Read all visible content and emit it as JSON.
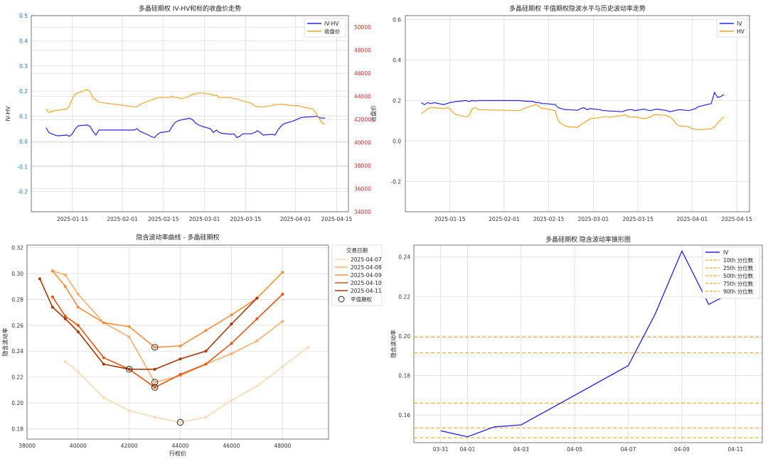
{
  "chart_data": [
    {
      "id": "chart1",
      "type": "line",
      "title": "多晶硅期权 IV-HV和标的收盘价走势",
      "ylabel": "IV-HV",
      "ylabel_right": "收盘价",
      "x_ticks": [
        "2025-01-15",
        "2025-02-01",
        "2025-02-15",
        "2025-03-01",
        "2025-03-15",
        "2025-04-01",
        "2025-04-15"
      ],
      "x_range": [
        "2025-01-01",
        "2025-04-19"
      ],
      "ylim": [
        -0.28,
        0.5
      ],
      "y_ticks": [
        -0.2,
        -0.1,
        0.0,
        0.1,
        0.2,
        0.3,
        0.4,
        0.5
      ],
      "ylim_right": [
        34000,
        51000
      ],
      "y_ticks_right": [
        34000,
        36000,
        38000,
        40000,
        42000,
        44000,
        46000,
        48000,
        50000
      ],
      "legend": "top-right",
      "grid": true,
      "series": [
        {
          "name": "IV-HV",
          "axis": "left",
          "color": "#2222ee",
          "x": [
            "2025-01-06",
            "2025-01-07",
            "2025-01-08",
            "2025-01-09",
            "2025-01-10",
            "2025-01-13",
            "2025-01-14",
            "2025-01-15",
            "2025-01-16",
            "2025-01-17",
            "2025-01-20",
            "2025-01-21",
            "2025-01-22",
            "2025-01-23",
            "2025-01-24",
            "2025-02-05",
            "2025-02-06",
            "2025-02-07",
            "2025-02-10",
            "2025-02-11",
            "2025-02-12",
            "2025-02-13",
            "2025-02-14",
            "2025-02-17",
            "2025-02-18",
            "2025-02-19",
            "2025-02-20",
            "2025-02-21",
            "2025-02-24",
            "2025-02-25",
            "2025-02-26",
            "2025-02-27",
            "2025-02-28",
            "2025-03-03",
            "2025-03-04",
            "2025-03-05",
            "2025-03-06",
            "2025-03-07",
            "2025-03-10",
            "2025-03-11",
            "2025-03-12",
            "2025-03-13",
            "2025-03-14",
            "2025-03-17",
            "2025-03-18",
            "2025-03-19",
            "2025-03-20",
            "2025-03-21",
            "2025-03-24",
            "2025-03-25",
            "2025-03-26",
            "2025-03-27",
            "2025-03-28",
            "2025-03-31",
            "2025-04-01",
            "2025-04-02",
            "2025-04-03",
            "2025-04-07",
            "2025-04-08",
            "2025-04-09",
            "2025-04-10",
            "2025-04-11"
          ],
          "values": [
            0.055,
            0.035,
            0.03,
            0.025,
            0.022,
            0.025,
            0.02,
            0.03,
            0.05,
            0.062,
            0.065,
            0.06,
            0.04,
            0.025,
            0.045,
            0.045,
            0.05,
            0.04,
            0.025,
            0.018,
            0.015,
            0.028,
            0.035,
            0.04,
            0.06,
            0.075,
            0.082,
            0.085,
            0.092,
            0.085,
            0.072,
            0.065,
            0.06,
            0.05,
            0.035,
            0.045,
            0.035,
            0.032,
            0.028,
            0.03,
            0.015,
            0.02,
            0.03,
            0.03,
            0.035,
            0.042,
            0.035,
            0.025,
            0.028,
            0.025,
            0.045,
            0.06,
            0.07,
            0.08,
            0.085,
            0.09,
            0.095,
            0.098,
            0.1,
            0.095,
            0.092,
            0.093
          ]
        },
        {
          "name": "收盘价",
          "axis": "right",
          "color": "#f5a623",
          "x": [
            "2025-01-06",
            "2025-01-07",
            "2025-01-08",
            "2025-01-09",
            "2025-01-10",
            "2025-01-13",
            "2025-01-14",
            "2025-01-15",
            "2025-01-16",
            "2025-01-17",
            "2025-01-20",
            "2025-01-21",
            "2025-01-22",
            "2025-01-23",
            "2025-01-24",
            "2025-02-05",
            "2025-02-06",
            "2025-02-07",
            "2025-02-10",
            "2025-02-11",
            "2025-02-12",
            "2025-02-13",
            "2025-02-14",
            "2025-02-17",
            "2025-02-18",
            "2025-02-19",
            "2025-02-20",
            "2025-02-21",
            "2025-02-24",
            "2025-02-25",
            "2025-02-26",
            "2025-02-27",
            "2025-02-28",
            "2025-03-03",
            "2025-03-04",
            "2025-03-05",
            "2025-03-06",
            "2025-03-07",
            "2025-03-10",
            "2025-03-11",
            "2025-03-12",
            "2025-03-13",
            "2025-03-14",
            "2025-03-17",
            "2025-03-18",
            "2025-03-19",
            "2025-03-20",
            "2025-03-21",
            "2025-03-24",
            "2025-03-25",
            "2025-03-26",
            "2025-03-27",
            "2025-03-28",
            "2025-03-31",
            "2025-04-01",
            "2025-04-02",
            "2025-04-03",
            "2025-04-07",
            "2025-04-08",
            "2025-04-09",
            "2025-04-10",
            "2025-04-11"
          ],
          "values": [
            42900,
            42600,
            42700,
            42750,
            42800,
            42900,
            43200,
            43800,
            44200,
            44300,
            44600,
            44400,
            43900,
            43700,
            43500,
            43100,
            43100,
            43300,
            43600,
            43700,
            43800,
            43900,
            43900,
            43900,
            44000,
            43900,
            43900,
            43800,
            44000,
            44200,
            44200,
            44300,
            44300,
            44200,
            44100,
            44100,
            43900,
            43900,
            43900,
            43800,
            43800,
            43700,
            43600,
            43400,
            43200,
            43100,
            43100,
            43100,
            43200,
            43300,
            43300,
            43300,
            43300,
            43200,
            43200,
            43200,
            43100,
            42900,
            42500,
            42100,
            41700,
            41600
          ]
        }
      ]
    },
    {
      "id": "chart2",
      "type": "line",
      "title": "多晶硅期权 平值期权隐波水平与历史波动率走势",
      "x_ticks": [
        "2025-01-15",
        "2025-02-01",
        "2025-02-15",
        "2025-03-01",
        "2025-03-15",
        "2025-04-01",
        "2025-04-15"
      ],
      "x_range": [
        "2025-01-01",
        "2025-04-19"
      ],
      "ylim": [
        -0.35,
        0.62
      ],
      "y_ticks": [
        -0.2,
        0.0,
        0.2,
        0.4,
        0.6
      ],
      "legend": "top-right",
      "grid": true,
      "series": [
        {
          "name": "IV",
          "color": "#2222ee",
          "x": [
            "2025-01-06",
            "2025-01-07",
            "2025-01-08",
            "2025-01-09",
            "2025-01-10",
            "2025-01-13",
            "2025-01-14",
            "2025-01-15",
            "2025-01-16",
            "2025-01-17",
            "2025-01-20",
            "2025-01-21",
            "2025-01-22",
            "2025-01-23",
            "2025-01-24",
            "2025-02-05",
            "2025-02-06",
            "2025-02-07",
            "2025-02-10",
            "2025-02-11",
            "2025-02-12",
            "2025-02-13",
            "2025-02-14",
            "2025-02-17",
            "2025-02-18",
            "2025-02-19",
            "2025-02-20",
            "2025-02-21",
            "2025-02-24",
            "2025-02-25",
            "2025-02-26",
            "2025-02-27",
            "2025-02-28",
            "2025-03-03",
            "2025-03-04",
            "2025-03-05",
            "2025-03-06",
            "2025-03-07",
            "2025-03-10",
            "2025-03-11",
            "2025-03-12",
            "2025-03-13",
            "2025-03-14",
            "2025-03-17",
            "2025-03-18",
            "2025-03-19",
            "2025-03-20",
            "2025-03-21",
            "2025-03-24",
            "2025-03-25",
            "2025-03-26",
            "2025-03-27",
            "2025-03-28",
            "2025-03-31",
            "2025-04-01",
            "2025-04-02",
            "2025-04-03",
            "2025-04-07",
            "2025-04-08",
            "2025-04-09",
            "2025-04-10",
            "2025-04-11"
          ],
          "values": [
            0.19,
            0.18,
            0.19,
            0.185,
            0.19,
            0.18,
            0.185,
            0.19,
            0.192,
            0.195,
            0.2,
            0.195,
            0.2,
            0.198,
            0.2,
            0.2,
            0.2,
            0.198,
            0.195,
            0.19,
            0.19,
            0.185,
            0.185,
            0.18,
            0.165,
            0.16,
            0.155,
            0.155,
            0.152,
            0.16,
            0.165,
            0.155,
            0.16,
            0.155,
            0.15,
            0.15,
            0.148,
            0.148,
            0.145,
            0.15,
            0.155,
            0.155,
            0.15,
            0.158,
            0.152,
            0.15,
            0.155,
            0.158,
            0.15,
            0.145,
            0.148,
            0.152,
            0.155,
            0.15,
            0.155,
            0.16,
            0.17,
            0.185,
            0.24,
            0.215,
            0.22,
            0.23
          ]
        },
        {
          "name": "HV",
          "color": "#f5a623",
          "x": [
            "2025-01-06",
            "2025-01-07",
            "2025-01-08",
            "2025-01-09",
            "2025-01-10",
            "2025-01-13",
            "2025-01-14",
            "2025-01-15",
            "2025-01-16",
            "2025-01-17",
            "2025-01-20",
            "2025-01-21",
            "2025-01-22",
            "2025-01-23",
            "2025-01-24",
            "2025-02-05",
            "2025-02-06",
            "2025-02-07",
            "2025-02-10",
            "2025-02-11",
            "2025-02-12",
            "2025-02-13",
            "2025-02-14",
            "2025-02-17",
            "2025-02-18",
            "2025-02-19",
            "2025-02-20",
            "2025-02-21",
            "2025-02-24",
            "2025-02-25",
            "2025-02-26",
            "2025-02-27",
            "2025-02-28",
            "2025-03-03",
            "2025-03-04",
            "2025-03-05",
            "2025-03-06",
            "2025-03-07",
            "2025-03-10",
            "2025-03-11",
            "2025-03-12",
            "2025-03-13",
            "2025-03-14",
            "2025-03-17",
            "2025-03-18",
            "2025-03-19",
            "2025-03-20",
            "2025-03-21",
            "2025-03-24",
            "2025-03-25",
            "2025-03-26",
            "2025-03-27",
            "2025-03-28",
            "2025-03-31",
            "2025-04-01",
            "2025-04-02",
            "2025-04-03",
            "2025-04-07",
            "2025-04-08",
            "2025-04-09",
            "2025-04-10",
            "2025-04-11"
          ],
          "values": [
            0.135,
            0.145,
            0.16,
            0.165,
            0.165,
            0.16,
            0.165,
            0.16,
            0.14,
            0.13,
            0.12,
            0.125,
            0.16,
            0.165,
            0.155,
            0.15,
            0.15,
            0.16,
            0.175,
            0.18,
            0.17,
            0.16,
            0.16,
            0.15,
            0.1,
            0.085,
            0.075,
            0.07,
            0.068,
            0.08,
            0.09,
            0.1,
            0.11,
            0.115,
            0.12,
            0.12,
            0.118,
            0.12,
            0.125,
            0.13,
            0.12,
            0.118,
            0.12,
            0.11,
            0.115,
            0.12,
            0.13,
            0.13,
            0.125,
            0.12,
            0.105,
            0.085,
            0.075,
            0.07,
            0.06,
            0.058,
            0.056,
            0.06,
            0.07,
            0.09,
            0.105,
            0.12
          ]
        }
      ]
    },
    {
      "id": "chart3",
      "type": "line",
      "title": "隐含波动率曲线 - 多晶硅期权",
      "xlabel": "行权价",
      "ylabel": "隐含波动率",
      "xlim": [
        38000,
        49800
      ],
      "x_ticks": [
        38000,
        40000,
        42000,
        44000,
        46000,
        48000
      ],
      "ylim": [
        0.172,
        0.322
      ],
      "y_ticks": [
        0.18,
        0.2,
        0.22,
        0.24,
        0.26,
        0.28,
        0.3,
        0.32
      ],
      "legend_title": "交易日期",
      "legend": "top-right outside",
      "atm_label": "平值期权",
      "grid": true,
      "series": [
        {
          "name": "2025-04-07",
          "color": "#fdd9b5",
          "x": [
            39500,
            40000,
            41000,
            42000,
            43000,
            44000,
            45000,
            46000,
            47000,
            48000,
            49000
          ],
          "values": [
            0.232,
            0.224,
            0.204,
            0.194,
            0.189,
            0.185,
            0.189,
            0.202,
            0.213,
            0.228,
            0.243
          ],
          "atm_x": 44000,
          "atm_value": 0.185
        },
        {
          "name": "2025-04-08",
          "color": "#fdae6b",
          "x": [
            39000,
            39500,
            40000,
            41000,
            42000,
            43000,
            44000,
            45000,
            46000,
            47000,
            48000
          ],
          "values": [
            0.302,
            0.299,
            0.284,
            0.262,
            0.251,
            0.216,
            0.221,
            0.23,
            0.238,
            0.248,
            0.263
          ],
          "atm_x": 43000,
          "atm_value": 0.216
        },
        {
          "name": "2025-04-09",
          "color": "#fd8d3c",
          "x": [
            39000,
            39500,
            40000,
            41000,
            42000,
            43000,
            44000,
            45000,
            46000,
            47000,
            48000
          ],
          "values": [
            0.302,
            0.29,
            0.274,
            0.262,
            0.259,
            0.243,
            0.244,
            0.256,
            0.268,
            0.281,
            0.301
          ],
          "atm_x": 43000,
          "atm_value": 0.243
        },
        {
          "name": "2025-04-10",
          "color": "#e6550d",
          "x": [
            39000,
            39500,
            40000,
            41000,
            42000,
            43000,
            44000,
            45000,
            46000,
            47000,
            48000
          ],
          "values": [
            0.282,
            0.267,
            0.26,
            0.235,
            0.226,
            0.212,
            0.222,
            0.23,
            0.246,
            0.265,
            0.284
          ],
          "atm_x": 43000,
          "atm_value": 0.212
        },
        {
          "name": "2025-04-11",
          "color": "#a63603",
          "x": [
            38500,
            39000,
            39500,
            40000,
            41000,
            42000,
            43000,
            44000,
            45000,
            46000,
            47000
          ],
          "values": [
            0.296,
            0.274,
            0.265,
            0.255,
            0.23,
            0.226,
            0.226,
            0.234,
            0.24,
            0.261,
            0.281
          ],
          "atm_x": 42000,
          "atm_value": 0.226
        }
      ]
    },
    {
      "id": "chart4",
      "type": "line",
      "title": "多晶硅期权 隐含波动率锥形图",
      "ylabel": "隐含波动率",
      "x_ticks": [
        "03-31",
        "04-01",
        "04-03",
        "04-05",
        "04-07",
        "04-09",
        "04-11"
      ],
      "x_range": [
        "2025-03-30",
        "2025-04-12"
      ],
      "ylim": [
        0.146,
        0.246
      ],
      "y_ticks": [
        0.16,
        0.18,
        0.2,
        0.22,
        0.24
      ],
      "legend": "top-right",
      "grid": true,
      "series": [
        {
          "name": "IV",
          "color": "#2222ee",
          "x": [
            "2025-03-31",
            "2025-04-01",
            "2025-04-02",
            "2025-04-03",
            "2025-04-07",
            "2025-04-08",
            "2025-04-09",
            "2025-04-10",
            "2025-04-11"
          ],
          "values": [
            0.152,
            0.149,
            0.154,
            0.155,
            0.185,
            0.211,
            0.243,
            0.216,
            0.223
          ]
        }
      ],
      "percentiles": [
        {
          "name": "10th 分位数",
          "value": 0.1485,
          "color": "#f5a623"
        },
        {
          "name": "25th 分位数",
          "value": 0.1535,
          "color": "#f5a623"
        },
        {
          "name": "50th 分位数",
          "value": 0.166,
          "color": "#f5a623"
        },
        {
          "name": "75th 分位数",
          "value": 0.1915,
          "color": "#f5a623"
        },
        {
          "name": "90th 分位数",
          "value": 0.1995,
          "color": "#f5a623"
        }
      ]
    }
  ]
}
